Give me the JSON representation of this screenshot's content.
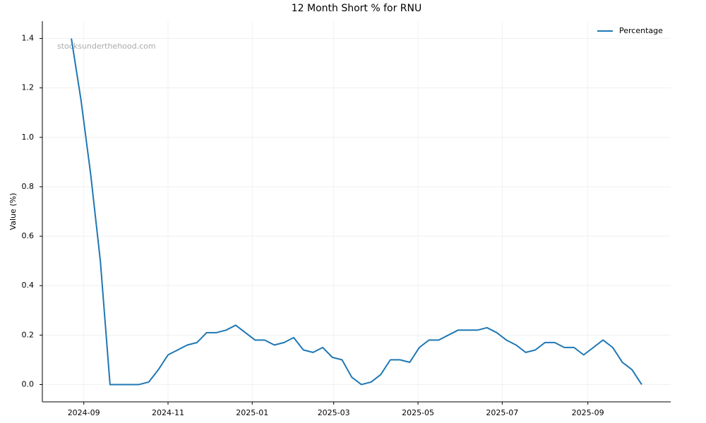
{
  "chart_data": {
    "type": "line",
    "title": "12 Month Short % for RNU",
    "ylabel": "Value (%)",
    "watermark": "stocksunderthehood.com",
    "series": [
      {
        "name": "Percentage",
        "color": "#1f77b4",
        "values": [
          1.4,
          1.15,
          0.85,
          0.5,
          0.0,
          0.0,
          0.0,
          0.0,
          0.01,
          0.06,
          0.12,
          0.14,
          0.16,
          0.17,
          0.21,
          0.21,
          0.22,
          0.24,
          0.21,
          0.18,
          0.18,
          0.16,
          0.17,
          0.19,
          0.14,
          0.13,
          0.15,
          0.11,
          0.1,
          0.03,
          0.0,
          0.01,
          0.04,
          0.1,
          0.1,
          0.09,
          0.15,
          0.18,
          0.18,
          0.2,
          0.22,
          0.22,
          0.22,
          0.23,
          0.21,
          0.18,
          0.16,
          0.13,
          0.14,
          0.17,
          0.17,
          0.15,
          0.15,
          0.12,
          0.15,
          0.18,
          0.15,
          0.09,
          0.06,
          0.0
        ]
      }
    ],
    "xlim": [
      -3,
      62
    ],
    "xticks": [
      {
        "value": 1.286,
        "label": "2024-09"
      },
      {
        "value": 10,
        "label": "2024-11"
      },
      {
        "value": 18.71,
        "label": "2025-01"
      },
      {
        "value": 27.14,
        "label": "2025-03"
      },
      {
        "value": 35.86,
        "label": "2025-05"
      },
      {
        "value": 44.57,
        "label": "2025-07"
      },
      {
        "value": 53.43,
        "label": "2025-09"
      }
    ],
    "ylim": [
      -0.07,
      1.47
    ],
    "yticks": [
      {
        "value": 0,
        "label": "0.0"
      },
      {
        "value": 0.2,
        "label": "0.2"
      },
      {
        "value": 0.4,
        "label": "0.4"
      },
      {
        "value": 0.6,
        "label": "0.6"
      },
      {
        "value": 0.8,
        "label": "0.8"
      },
      {
        "value": 1.0,
        "label": "1.0"
      },
      {
        "value": 1.2,
        "label": "1.2"
      },
      {
        "value": 1.4,
        "label": "1.4"
      }
    ],
    "grid": true,
    "legend": "upper right"
  }
}
